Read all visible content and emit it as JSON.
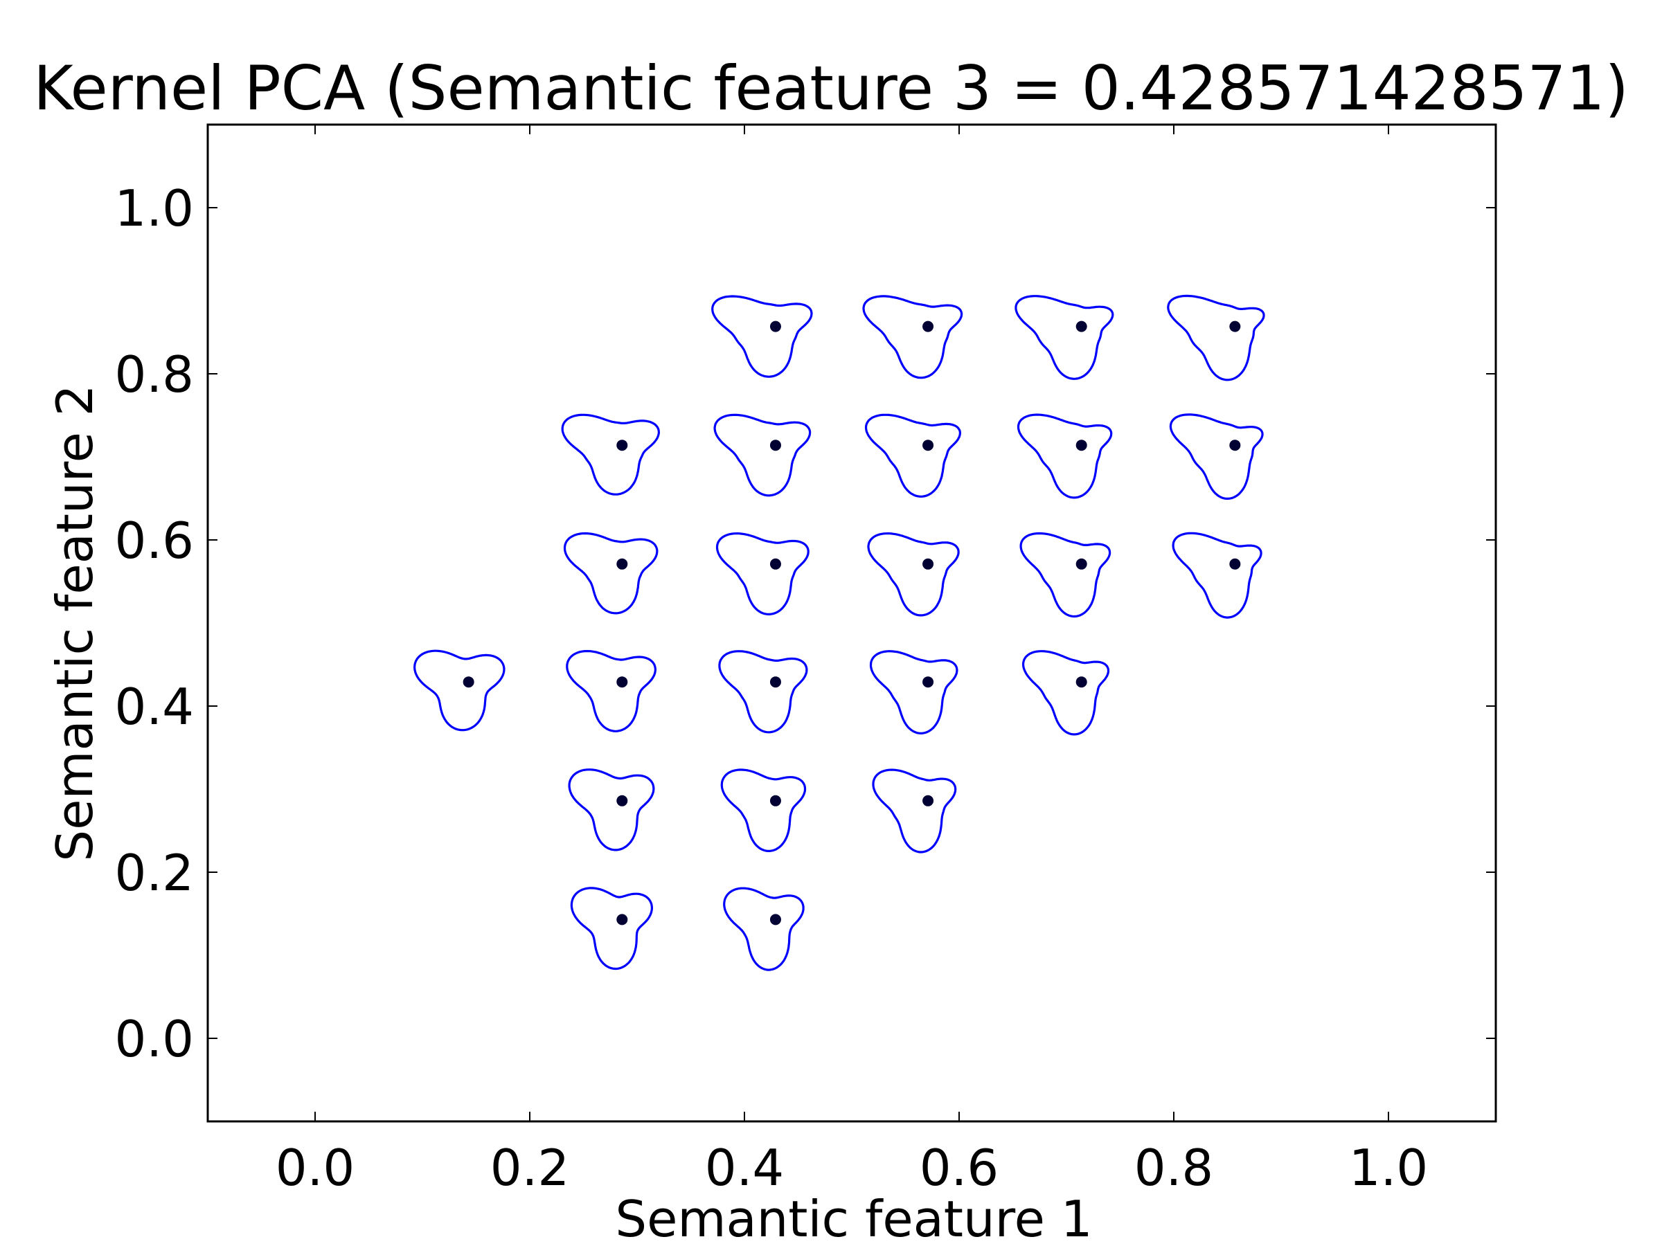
{
  "chart_data": {
    "type": "scatter",
    "title": "Kernel PCA (Semantic feature 3 = 0.428571428571)",
    "xlabel": "Semantic feature 1",
    "ylabel": "Semantic feature 2",
    "xlim": [
      -0.1,
      1.1
    ],
    "ylim": [
      -0.1,
      1.1
    ],
    "xticks": [
      "0.0",
      "0.2",
      "0.4",
      "0.6",
      "0.8",
      "1.0"
    ],
    "yticks": [
      "0.0",
      "0.2",
      "0.4",
      "0.6",
      "0.8",
      "1.0"
    ],
    "grid": false,
    "marker_color": "#000033",
    "glyph_color": "#0000ff",
    "points": [
      {
        "x": 0.143,
        "y": 0.429
      },
      {
        "x": 0.286,
        "y": 0.143
      },
      {
        "x": 0.286,
        "y": 0.286
      },
      {
        "x": 0.286,
        "y": 0.429
      },
      {
        "x": 0.286,
        "y": 0.571
      },
      {
        "x": 0.286,
        "y": 0.714
      },
      {
        "x": 0.429,
        "y": 0.143
      },
      {
        "x": 0.429,
        "y": 0.286
      },
      {
        "x": 0.429,
        "y": 0.429
      },
      {
        "x": 0.429,
        "y": 0.571
      },
      {
        "x": 0.429,
        "y": 0.714
      },
      {
        "x": 0.429,
        "y": 0.857
      },
      {
        "x": 0.571,
        "y": 0.286
      },
      {
        "x": 0.571,
        "y": 0.429
      },
      {
        "x": 0.571,
        "y": 0.571
      },
      {
        "x": 0.571,
        "y": 0.714
      },
      {
        "x": 0.571,
        "y": 0.857
      },
      {
        "x": 0.714,
        "y": 0.429
      },
      {
        "x": 0.714,
        "y": 0.571
      },
      {
        "x": 0.714,
        "y": 0.714
      },
      {
        "x": 0.714,
        "y": 0.857
      },
      {
        "x": 0.857,
        "y": 0.571
      },
      {
        "x": 0.857,
        "y": 0.714
      },
      {
        "x": 0.857,
        "y": 0.857
      }
    ]
  }
}
